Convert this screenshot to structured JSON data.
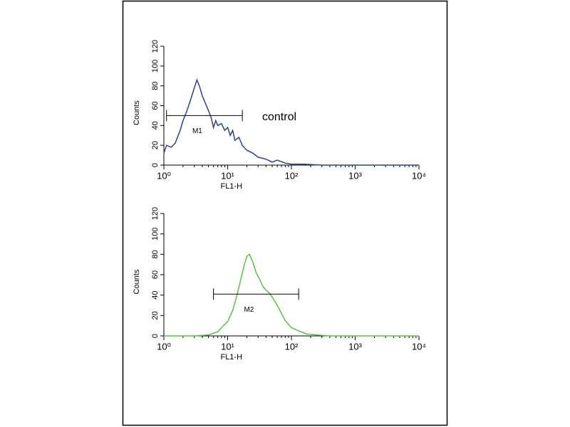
{
  "chart_data": [
    {
      "type": "line",
      "xscale": "log",
      "x_label": "FL1-H",
      "y_label": "Counts",
      "annotation": "control",
      "color": "#2c3f9c",
      "x": [
        1,
        1.1,
        1.3,
        1.5,
        1.8,
        2.0,
        2.3,
        2.6,
        3.0,
        3.3,
        3.6,
        4.0,
        4.5,
        5.0,
        5.5,
        6.0,
        6.5,
        7.0,
        8.0,
        9.0,
        10,
        11,
        12,
        13,
        15,
        17,
        20,
        25,
        30,
        40,
        50,
        60,
        80,
        100,
        150,
        300,
        1000,
        10000
      ],
      "values": [
        12,
        20,
        18,
        22,
        35,
        45,
        55,
        65,
        78,
        86,
        80,
        70,
        62,
        55,
        48,
        38,
        45,
        40,
        42,
        35,
        38,
        30,
        35,
        25,
        28,
        20,
        15,
        12,
        8,
        6,
        3,
        5,
        2,
        1,
        1,
        0,
        0,
        0
      ],
      "marker": {
        "label": "M1",
        "x": [
          1.1,
          17
        ],
        "y": 50
      },
      "xlim": [
        1,
        10000
      ],
      "ylim": [
        0,
        120
      ],
      "xticks": [
        {
          "value": 1,
          "label": "10⁰"
        },
        {
          "value": 10,
          "label": "10¹"
        },
        {
          "value": 100,
          "label": "10²"
        },
        {
          "value": 1000,
          "label": "10³"
        },
        {
          "value": 10000,
          "label": "10⁴"
        }
      ],
      "yticks": [
        0,
        20,
        40,
        60,
        80,
        100,
        120
      ]
    },
    {
      "type": "line",
      "xscale": "log",
      "x_label": "FL1-H",
      "y_label": "Counts",
      "color": "#5cc23c",
      "x": [
        1,
        3,
        5,
        7,
        8,
        10,
        12,
        14,
        16,
        18,
        20,
        22,
        25,
        28,
        32,
        36,
        40,
        45,
        50,
        60,
        70,
        80,
        100,
        130,
        170,
        250,
        400,
        10000
      ],
      "values": [
        0,
        0,
        1,
        4,
        8,
        14,
        25,
        40,
        55,
        68,
        78,
        80,
        72,
        62,
        55,
        48,
        45,
        42,
        38,
        30,
        22,
        15,
        8,
        5,
        2,
        1,
        0,
        0
      ],
      "marker": {
        "label": "M2",
        "x": [
          6,
          130
        ],
        "y": 41
      },
      "xlim": [
        1,
        10000
      ],
      "ylim": [
        0,
        120
      ],
      "xticks": [
        {
          "value": 1,
          "label": "10⁰"
        },
        {
          "value": 10,
          "label": "10¹"
        },
        {
          "value": 100,
          "label": "10²"
        },
        {
          "value": 1000,
          "label": "10³"
        },
        {
          "value": 10000,
          "label": "10⁴"
        }
      ],
      "yticks": [
        0,
        20,
        40,
        60,
        80,
        100,
        120
      ]
    }
  ]
}
